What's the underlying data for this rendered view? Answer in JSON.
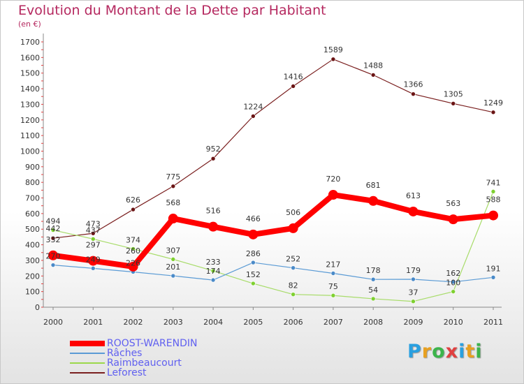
{
  "title": "Evolution du Montant de la Dette par Habitant",
  "subtitle": "(en €)",
  "logo": {
    "letters": [
      "P",
      "r",
      "o",
      "x",
      "i",
      "t",
      "i"
    ],
    "colors": [
      "#2aa0e0",
      "#e8a020",
      "#3cb44b",
      "#e04040",
      "#2aa0e0",
      "#e8a020",
      "#3cb44b"
    ]
  },
  "chart_data": {
    "type": "line",
    "x": [
      "2000",
      "2001",
      "2002",
      "2003",
      "2004",
      "2005",
      "2006",
      "2007",
      "2008",
      "2009",
      "2010",
      "2011"
    ],
    "ylim": [
      0,
      1700
    ],
    "yticks": [
      "0",
      "100",
      "200",
      "300",
      "400",
      "500",
      "600",
      "700",
      "800",
      "900",
      "1000",
      "1100",
      "1200",
      "1300",
      "1400",
      "1500",
      "1600",
      "1700"
    ],
    "grid": false,
    "legend_position": "bottom-left",
    "series": [
      {
        "name": "ROOST-WARENDIN",
        "color": "#ff0000",
        "values": [
          332,
          297,
          260,
          568,
          516,
          466,
          506,
          720,
          681,
          613,
          563,
          588
        ]
      },
      {
        "name": "Râches",
        "color": "#5b9bd5",
        "values": [
          270,
          249,
          226,
          201,
          174,
          286,
          252,
          217,
          178,
          179,
          162,
          191
        ]
      },
      {
        "name": "Raimbeaucourt",
        "color": "#9bd84a",
        "values": [
          494,
          437,
          374,
          307,
          233,
          152,
          82,
          75,
          54,
          37,
          100,
          741
        ]
      },
      {
        "name": "Leforest",
        "color": "#7a1f1f",
        "values": [
          442,
          473,
          626,
          775,
          952,
          1224,
          1416,
          1589,
          1488,
          1366,
          1305,
          1249
        ]
      }
    ]
  }
}
